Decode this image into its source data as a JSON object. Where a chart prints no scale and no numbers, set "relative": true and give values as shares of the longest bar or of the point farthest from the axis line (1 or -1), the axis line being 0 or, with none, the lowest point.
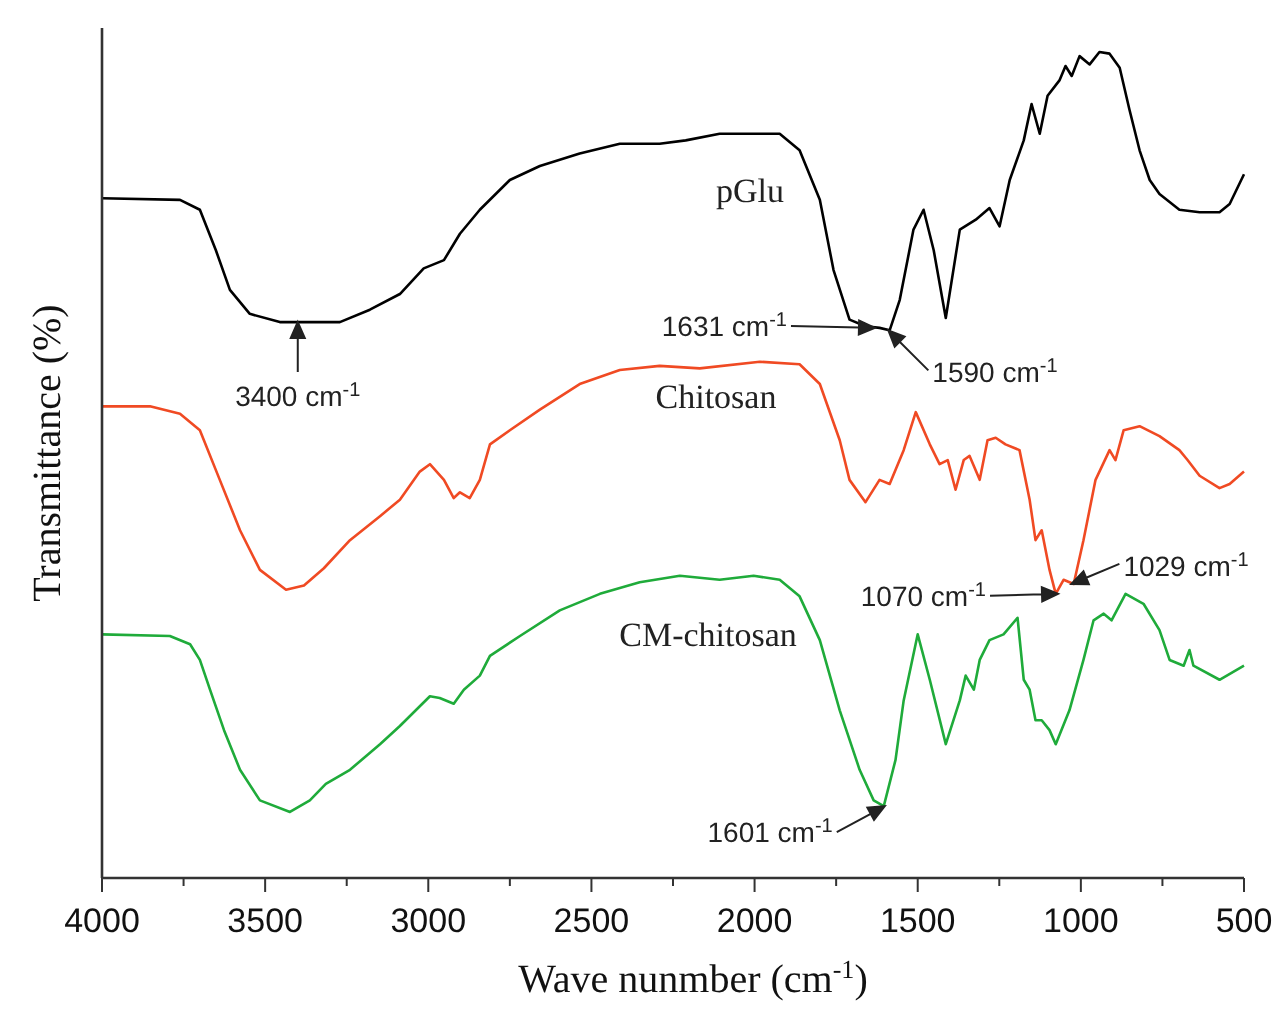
{
  "chart_data": {
    "type": "line",
    "relative": true,
    "xlabel": "Wave nunmber (cm$^{-1}$)",
    "ylabel": "Transmittance (%)",
    "xlim": [
      4000,
      500
    ],
    "xticks": [
      4000,
      {
        "value": 3750,
        "label": null
      },
      3500,
      {
        "value": 3250,
        "label": null
      },
      3000,
      {
        "value": 2750,
        "label": null
      },
      2500,
      {
        "value": 2250,
        "label": null
      },
      2000,
      {
        "value": 1750,
        "label": null
      },
      1500,
      {
        "value": 1250,
        "label": null
      },
      1000,
      {
        "value": 750,
        "label": null
      },
      500
    ],
    "tick_labels": "x",
    "legend": false,
    "grid": false,
    "marker": "none",
    "line_style": "solid",
    "series": [
      {
        "name": "pGlu",
        "color": "#000000",
        "x": [
          4000,
          3761,
          3700,
          3651,
          3608,
          3547,
          3455,
          3271,
          3179,
          3087,
          3014,
          2952,
          2903,
          2842,
          2750,
          2658,
          2536,
          2413,
          2291,
          2211,
          2107,
          1923,
          1862,
          1800,
          1758,
          1709,
          1660,
          1617,
          1586,
          1555,
          1513,
          1482,
          1451,
          1414,
          1371,
          1322,
          1280,
          1249,
          1218,
          1175,
          1151,
          1126,
          1102,
          1065,
          1047,
          1028,
          1004,
          973,
          943,
          912,
          881,
          851,
          820,
          789,
          759,
          698,
          636,
          575,
          544,
          500
        ],
        "values": [
          0.823,
          0.821,
          0.809,
          0.76,
          0.712,
          0.683,
          0.673,
          0.673,
          0.688,
          0.707,
          0.738,
          0.748,
          0.78,
          0.809,
          0.845,
          0.862,
          0.877,
          0.889,
          0.889,
          0.893,
          0.901,
          0.901,
          0.881,
          0.821,
          0.736,
          0.676,
          0.668,
          0.666,
          0.663,
          0.7,
          0.785,
          0.809,
          0.76,
          0.678,
          0.785,
          0.797,
          0.811,
          0.789,
          0.845,
          0.893,
          0.937,
          0.901,
          0.947,
          0.966,
          0.983,
          0.971,
          0.995,
          0.985,
          1.0,
          0.998,
          0.981,
          0.93,
          0.881,
          0.845,
          0.828,
          0.809,
          0.806,
          0.806,
          0.816,
          0.852
        ]
      },
      {
        "name": "Chitosan",
        "color": "#f04a23",
        "x": [
          4000,
          3853,
          3761,
          3700,
          3639,
          3577,
          3516,
          3436,
          3381,
          3320,
          3240,
          3148,
          3087,
          3026,
          2995,
          2952,
          2922,
          2903,
          2873,
          2842,
          2811,
          2750,
          2658,
          2536,
          2413,
          2291,
          2168,
          1984,
          1862,
          1800,
          1739,
          1709,
          1660,
          1617,
          1586,
          1543,
          1506,
          1463,
          1433,
          1408,
          1384,
          1359,
          1341,
          1310,
          1286,
          1261,
          1231,
          1188,
          1157,
          1139,
          1120,
          1096,
          1077,
          1053,
          1022,
          992,
          955,
          912,
          894,
          869,
          820,
          759,
          698,
          673,
          636,
          575,
          544,
          500
        ],
        "values": [
          0.571,
          0.571,
          0.562,
          0.542,
          0.482,
          0.421,
          0.373,
          0.349,
          0.354,
          0.375,
          0.409,
          0.438,
          0.458,
          0.492,
          0.501,
          0.482,
          0.46,
          0.467,
          0.46,
          0.482,
          0.525,
          0.542,
          0.567,
          0.598,
          0.615,
          0.62,
          0.617,
          0.625,
          0.622,
          0.598,
          0.53,
          0.482,
          0.455,
          0.482,
          0.477,
          0.518,
          0.564,
          0.525,
          0.501,
          0.506,
          0.47,
          0.506,
          0.511,
          0.482,
          0.53,
          0.533,
          0.525,
          0.518,
          0.458,
          0.409,
          0.421,
          0.373,
          0.344,
          0.361,
          0.356,
          0.409,
          0.482,
          0.518,
          0.506,
          0.542,
          0.547,
          0.535,
          0.518,
          0.506,
          0.487,
          0.472,
          0.477,
          0.492
        ]
      },
      {
        "name": "CM-chitosan",
        "color": "#1fab3a",
        "x": [
          4000,
          3792,
          3730,
          3700,
          3669,
          3626,
          3577,
          3516,
          3424,
          3363,
          3314,
          3240,
          3148,
          3087,
          2995,
          2965,
          2922,
          2891,
          2842,
          2811,
          2719,
          2597,
          2474,
          2352,
          2229,
          2107,
          2003,
          1923,
          1862,
          1800,
          1739,
          1678,
          1635,
          1604,
          1568,
          1543,
          1500,
          1463,
          1414,
          1371,
          1353,
          1328,
          1310,
          1280,
          1237,
          1194,
          1175,
          1157,
          1139,
          1120,
          1096,
          1077,
          1035,
          992,
          961,
          930,
          906,
          863,
          808,
          759,
          728,
          685,
          667,
          655,
          575,
          500
        ],
        "values": [
          0.295,
          0.293,
          0.283,
          0.264,
          0.228,
          0.179,
          0.131,
          0.094,
          0.08,
          0.094,
          0.114,
          0.131,
          0.162,
          0.184,
          0.22,
          0.218,
          0.211,
          0.228,
          0.245,
          0.269,
          0.293,
          0.324,
          0.344,
          0.358,
          0.366,
          0.361,
          0.366,
          0.361,
          0.341,
          0.288,
          0.203,
          0.131,
          0.094,
          0.087,
          0.143,
          0.215,
          0.295,
          0.24,
          0.162,
          0.215,
          0.245,
          0.228,
          0.264,
          0.288,
          0.295,
          0.315,
          0.24,
          0.228,
          0.191,
          0.191,
          0.179,
          0.162,
          0.203,
          0.264,
          0.312,
          0.32,
          0.312,
          0.344,
          0.332,
          0.3,
          0.264,
          0.257,
          0.276,
          0.257,
          0.24,
          0.257
        ]
      }
    ],
    "annotations": [
      {
        "text": "3400 cm$^{-1}$",
        "x": 3400,
        "y": 0.673
      },
      {
        "text": "1631 cm$^{-1}$",
        "x": 1631,
        "y": 0.666
      },
      {
        "text": "1590 cm$^{-1}$",
        "x": 1590,
        "y": 0.663
      },
      {
        "text": "1070 cm$^{-1}$",
        "x": 1070,
        "y": 0.344
      },
      {
        "text": "1029 cm$^{-1}$",
        "x": 1029,
        "y": 0.356
      },
      {
        "text": "1601 cm$^{-1}$",
        "x": 1601,
        "y": 0.087
      }
    ]
  }
}
